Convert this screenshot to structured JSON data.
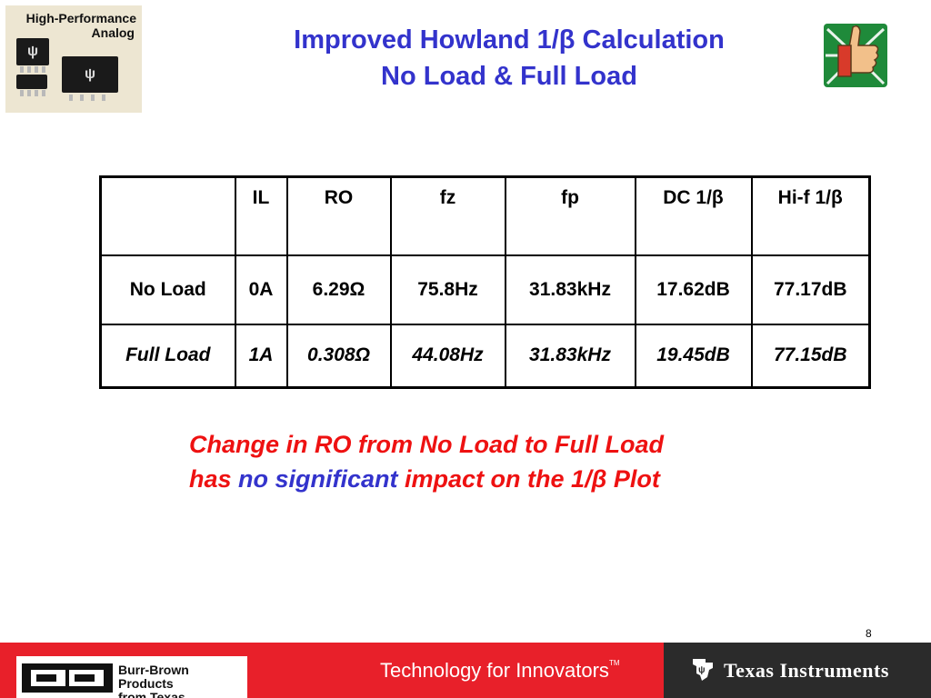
{
  "logo": {
    "line1": "High-Performance",
    "line2": "Analog",
    "icon": "ti-chip-icon"
  },
  "title": {
    "line1": "Improved Howland 1/β Calculation",
    "line2": "No Load & Full Load"
  },
  "thumb_icon": "thumbs-up-icon",
  "table": {
    "headers": [
      "",
      "IL",
      "RO",
      "fz",
      "fp",
      "DC 1/β",
      "Hi-f 1/β"
    ],
    "rows": [
      [
        "No Load",
        "0A",
        "6.29Ω",
        "75.8Hz",
        "31.83kHz",
        "17.62dB",
        "77.17dB"
      ],
      [
        "Full Load",
        "1A",
        "0.308Ω",
        "44.08Hz",
        "31.83kHz",
        "19.45dB",
        "77.15dB"
      ]
    ]
  },
  "caption": {
    "line1": "Change in RO from No Load to Full Load",
    "line2_a": "has ",
    "line2_b": "no significant",
    "line2_c": " impact on the 1/β Plot"
  },
  "page_number": "8",
  "footer": {
    "bb_line1": "Burr-Brown Products",
    "bb_line2": "from Texas Instruments",
    "tagline": "Technology for Innovators",
    "tm": "TM",
    "ti_name": "Texas Instruments"
  },
  "colors": {
    "title": "#3333cc",
    "caption_red": "#ee1111",
    "footer_red": "#e8202a"
  }
}
